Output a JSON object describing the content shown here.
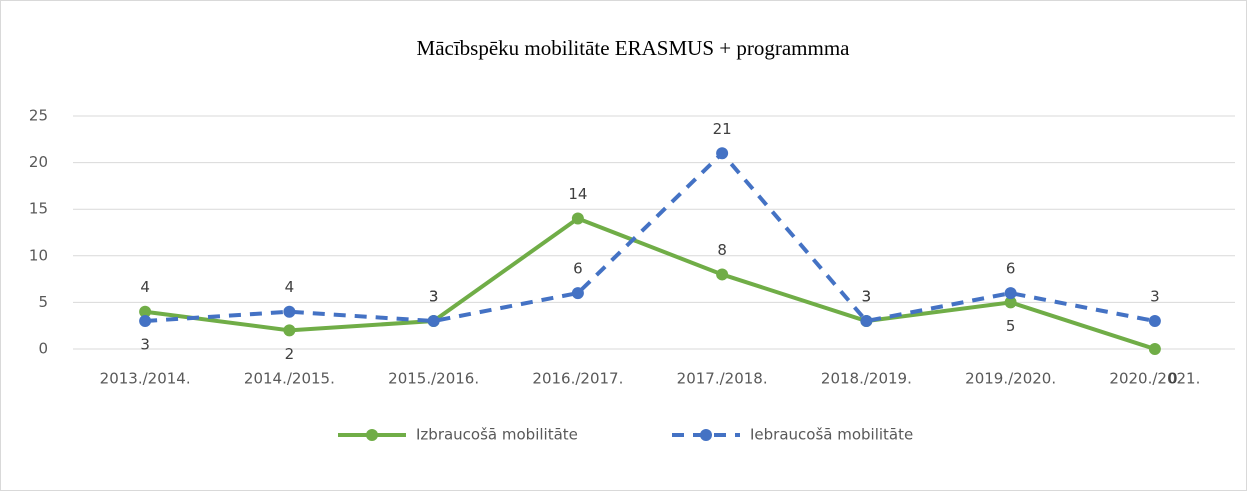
{
  "chart_data": {
    "type": "line",
    "title": "Mācībspēku mobilitāte  ERASMUS + programmma",
    "categories": [
      "2013./2014.",
      "2014./2015.",
      "2015./2016.",
      "2016./2017.",
      "2017./2018.",
      "2018./2019.",
      "2019./2020.",
      "2020./2021."
    ],
    "series": [
      {
        "name": "Izbraucošā mobilitāte",
        "color": "#70ad47",
        "dash": false,
        "values": [
          4,
          2,
          3,
          14,
          8,
          3,
          5,
          0
        ]
      },
      {
        "name": "Iebraucošā mobilitāte",
        "color": "#4472c4",
        "dash": true,
        "values": [
          3,
          4,
          3,
          6,
          21,
          3,
          6,
          3
        ]
      }
    ],
    "ylim": [
      0,
      25
    ],
    "yticks": [
      0,
      5,
      10,
      15,
      20,
      25
    ],
    "grid": true,
    "legend": "bottom"
  }
}
